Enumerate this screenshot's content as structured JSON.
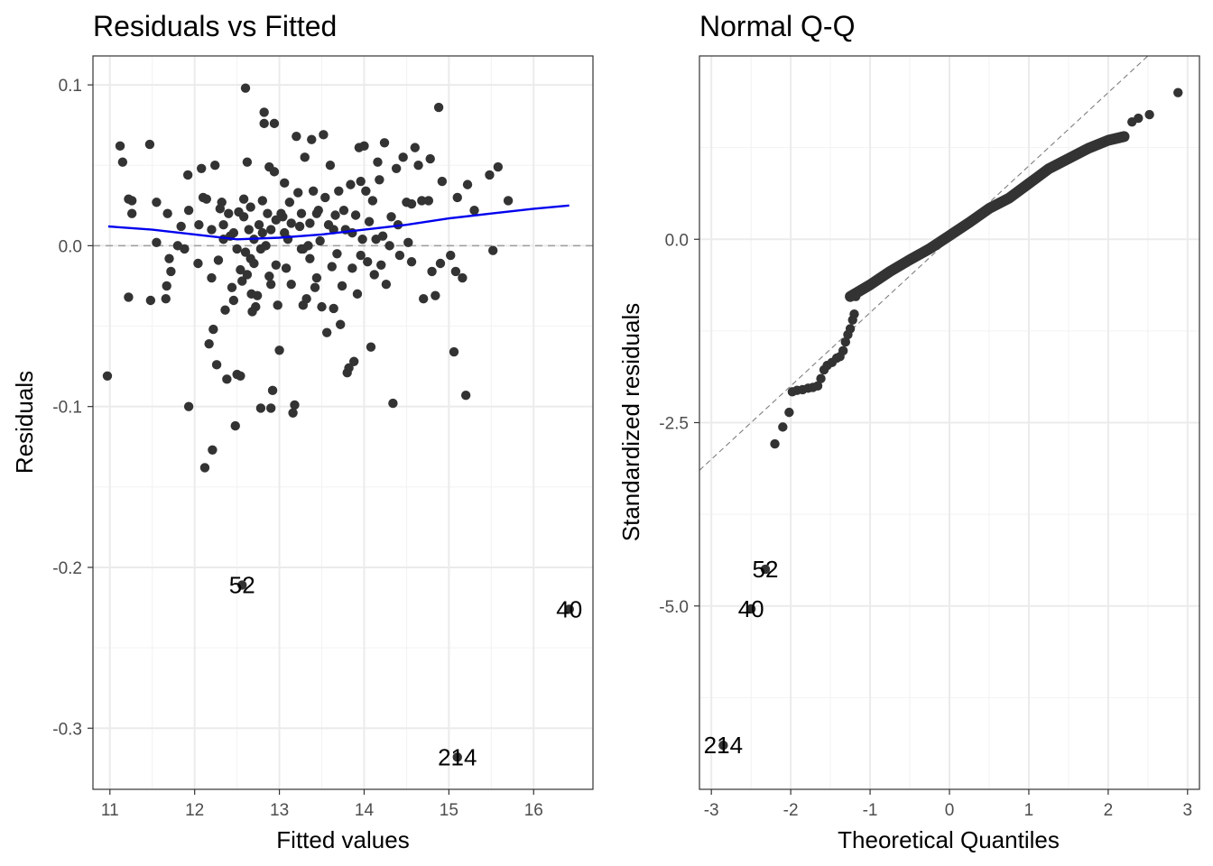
{
  "chart_data": [
    {
      "type": "scatter",
      "title": "Residuals vs Fitted",
      "xlabel": "Fitted values",
      "ylabel": "Residuals",
      "xlim": [
        10.8,
        16.7
      ],
      "ylim": [
        -0.338,
        0.118
      ],
      "xticks": [
        11,
        12,
        13,
        14,
        15,
        16
      ],
      "xtick_labels": [
        "11",
        "12",
        "13",
        "14",
        "15",
        "16"
      ],
      "yticks": [
        -0.3,
        -0.2,
        -0.1,
        0.0,
        0.1
      ],
      "ytick_labels": [
        "-0.3",
        "-0.2",
        "-0.1",
        "0.0",
        "0.1"
      ],
      "grid": true,
      "reference_line": {
        "y": 0,
        "style": "dashed",
        "color": "#9e9e9e"
      },
      "smooth_line": {
        "color": "#0000ee",
        "x": [
          10.98,
          11.5,
          12.0,
          12.5,
          13.0,
          13.5,
          14.0,
          14.5,
          15.0,
          15.5,
          16.0,
          16.42
        ],
        "y": [
          0.012,
          0.01,
          0.007,
          0.004,
          0.005,
          0.007,
          0.01,
          0.013,
          0.017,
          0.02,
          0.023,
          0.025
        ]
      },
      "point_color": "#333333",
      "series": [
        {
          "points": [
            [
              10.97,
              -0.081
            ],
            [
              11.12,
              0.062
            ],
            [
              11.15,
              0.052
            ],
            [
              11.22,
              -0.032
            ],
            [
              11.22,
              0.029
            ],
            [
              11.26,
              0.02
            ],
            [
              11.26,
              0.028
            ],
            [
              11.47,
              0.063
            ],
            [
              11.48,
              -0.034
            ],
            [
              11.55,
              0.002
            ],
            [
              11.55,
              0.027
            ],
            [
              11.66,
              -0.033
            ],
            [
              11.67,
              -0.025
            ],
            [
              11.68,
              0.02
            ],
            [
              11.7,
              -0.008
            ],
            [
              11.8,
              0.0
            ],
            [
              11.84,
              0.012
            ],
            [
              11.88,
              -0.002
            ],
            [
              11.92,
              0.044
            ],
            [
              11.93,
              -0.1
            ],
            [
              11.93,
              0.022
            ],
            [
              12.04,
              -0.011
            ],
            [
              12.05,
              0.013
            ],
            [
              12.08,
              0.048
            ],
            [
              12.1,
              0.03
            ],
            [
              12.12,
              -0.138
            ],
            [
              12.14,
              0.029
            ],
            [
              12.17,
              -0.061
            ],
            [
              12.2,
              0.01
            ],
            [
              12.2,
              -0.02
            ],
            [
              12.21,
              -0.127
            ],
            [
              12.24,
              0.05
            ],
            [
              12.26,
              -0.074
            ],
            [
              12.28,
              -0.009
            ],
            [
              12.3,
              0.023
            ],
            [
              12.32,
              0.027
            ],
            [
              12.34,
              0.004
            ],
            [
              12.34,
              0.013
            ],
            [
              12.36,
              -0.04
            ],
            [
              12.38,
              -0.083
            ],
            [
              12.4,
              0.02
            ],
            [
              12.42,
              0.006
            ],
            [
              12.44,
              -0.026
            ],
            [
              12.46,
              -0.034
            ],
            [
              12.48,
              -0.112
            ],
            [
              12.5,
              -0.08
            ],
            [
              12.5,
              -0.002
            ],
            [
              12.52,
              0.021
            ],
            [
              12.54,
              -0.015
            ],
            [
              12.54,
              -0.081
            ],
            [
              12.56,
              -0.022
            ],
            [
              12.58,
              0.018
            ],
            [
              12.58,
              0.029
            ],
            [
              12.6,
              0.098
            ],
            [
              12.6,
              -0.004
            ],
            [
              12.62,
              -0.018
            ],
            [
              12.62,
              0.052
            ],
            [
              12.64,
              0.01
            ],
            [
              12.66,
              -0.008
            ],
            [
              12.67,
              -0.03
            ],
            [
              12.68,
              -0.041
            ],
            [
              12.7,
              -0.011
            ],
            [
              12.7,
              0.004
            ],
            [
              12.72,
              -0.038
            ],
            [
              12.74,
              -0.031
            ],
            [
              12.76,
              0.013
            ],
            [
              12.78,
              -0.101
            ],
            [
              12.8,
              0.028
            ],
            [
              12.82,
              0.083
            ],
            [
              12.82,
              0.076
            ],
            [
              12.84,
              0.0
            ],
            [
              12.86,
              0.02
            ],
            [
              12.88,
              -0.019
            ],
            [
              12.88,
              0.049
            ],
            [
              12.9,
              0.01
            ],
            [
              12.9,
              -0.024
            ],
            [
              12.9,
              -0.101
            ],
            [
              12.92,
              -0.09
            ],
            [
              12.94,
              0.076
            ],
            [
              12.94,
              0.046
            ],
            [
              12.96,
              -0.012
            ],
            [
              12.98,
              -0.037
            ],
            [
              13.0,
              -0.065
            ],
            [
              13.02,
              0.02
            ],
            [
              13.04,
              0.018
            ],
            [
              13.06,
              0.039
            ],
            [
              13.08,
              -0.014
            ],
            [
              13.1,
              0.004
            ],
            [
              13.12,
              0.027
            ],
            [
              13.14,
              -0.024
            ],
            [
              13.16,
              -0.104
            ],
            [
              13.18,
              -0.099
            ],
            [
              13.2,
              0.068
            ],
            [
              13.22,
              0.033
            ],
            [
              13.24,
              0.012
            ],
            [
              13.26,
              -0.002
            ],
            [
              13.26,
              0.02
            ],
            [
              13.28,
              -0.037
            ],
            [
              13.3,
              0.055
            ],
            [
              13.32,
              -0.033
            ],
            [
              13.34,
              0.0
            ],
            [
              13.36,
              0.014
            ],
            [
              13.38,
              0.066
            ],
            [
              13.4,
              0.034
            ],
            [
              13.42,
              -0.026
            ],
            [
              13.44,
              -0.02
            ],
            [
              13.46,
              0.022
            ],
            [
              13.48,
              0.003
            ],
            [
              13.5,
              -0.038
            ],
            [
              13.52,
              0.069
            ],
            [
              13.54,
              0.03
            ],
            [
              13.56,
              -0.054
            ],
            [
              13.58,
              0.013
            ],
            [
              13.6,
              0.05
            ],
            [
              13.62,
              -0.013
            ],
            [
              13.64,
              -0.039
            ],
            [
              13.66,
              0.019
            ],
            [
              13.68,
              -0.005
            ],
            [
              13.7,
              0.034
            ],
            [
              13.72,
              -0.049
            ],
            [
              13.74,
              -0.025
            ],
            [
              13.76,
              0.022
            ],
            [
              13.78,
              0.01
            ],
            [
              13.8,
              -0.079
            ],
            [
              13.82,
              -0.076
            ],
            [
              13.84,
              0.038
            ],
            [
              13.86,
              -0.014
            ],
            [
              13.88,
              -0.072
            ],
            [
              13.9,
              0.019
            ],
            [
              13.92,
              -0.03
            ],
            [
              13.94,
              0.061
            ],
            [
              13.96,
              0.04
            ],
            [
              13.98,
              0.004
            ],
            [
              14.0,
              0.062
            ],
            [
              14.02,
              0.034
            ],
            [
              14.04,
              -0.01
            ],
            [
              14.06,
              0.015
            ],
            [
              14.08,
              -0.063
            ],
            [
              14.1,
              0.028
            ],
            [
              14.12,
              -0.018
            ],
            [
              14.14,
              0.004
            ],
            [
              14.16,
              0.052
            ],
            [
              14.18,
              0.041
            ],
            [
              14.2,
              -0.012
            ],
            [
              14.24,
              0.064
            ],
            [
              14.26,
              -0.024
            ],
            [
              14.3,
              0.0
            ],
            [
              14.34,
              -0.098
            ],
            [
              14.38,
              0.048
            ],
            [
              14.4,
              0.013
            ],
            [
              14.42,
              -0.006
            ],
            [
              14.46,
              0.055
            ],
            [
              14.5,
              0.027
            ],
            [
              14.52,
              0.002
            ],
            [
              14.56,
              0.026
            ],
            [
              14.6,
              0.061
            ],
            [
              14.64,
              0.05
            ],
            [
              14.68,
              0.028
            ],
            [
              14.7,
              -0.033
            ],
            [
              14.76,
              0.028
            ],
            [
              14.78,
              0.054
            ],
            [
              14.84,
              -0.031
            ],
            [
              14.88,
              0.086
            ],
            [
              14.9,
              -0.011
            ],
            [
              14.92,
              0.04
            ],
            [
              15.02,
              -0.006
            ],
            [
              15.06,
              -0.066
            ],
            [
              15.1,
              0.03
            ],
            [
              15.16,
              -0.02
            ],
            [
              15.2,
              -0.093
            ],
            [
              15.22,
              0.038
            ],
            [
              15.3,
              0.022
            ],
            [
              15.48,
              0.044
            ],
            [
              15.52,
              -0.003
            ],
            [
              15.58,
              0.049
            ],
            [
              15.7,
              0.028
            ],
            [
              11.72,
              -0.016
            ],
            [
              12.22,
              -0.052
            ],
            [
              13.28,
              -0.002
            ],
            [
              13.86,
              0.008
            ],
            [
              14.8,
              -0.016
            ],
            [
              15.08,
              -0.016
            ],
            [
              12.66,
              0.024
            ],
            [
              13.44,
              0.02
            ],
            [
              12.78,
              -0.002
            ],
            [
              14.32,
              0.018
            ],
            [
              13.06,
              0.008
            ],
            [
              12.46,
              0.008
            ],
            [
              13.96,
              -0.006
            ],
            [
              14.56,
              -0.01
            ],
            [
              12.96,
              0.016
            ],
            [
              13.64,
              0.01
            ],
            [
              12.8,
              0.008
            ],
            [
              13.36,
              -0.008
            ],
            [
              14.22,
              0.006
            ],
            [
              13.14,
              0.014
            ]
          ]
        }
      ],
      "labeled_points": [
        {
          "label": "52",
          "x": 12.56,
          "y": -0.211
        },
        {
          "label": "40",
          "x": 16.42,
          "y": -0.226
        },
        {
          "label": "214",
          "x": 15.1,
          "y": -0.318
        }
      ]
    },
    {
      "type": "scatter",
      "title": "Normal Q-Q",
      "xlabel": "Theoretical Quantiles",
      "ylabel": "Standardized residuals",
      "xlim": [
        -3.15,
        3.15
      ],
      "ylim": [
        -7.5,
        2.5
      ],
      "xticks": [
        -3,
        -2,
        -1,
        0,
        1,
        2,
        3
      ],
      "xtick_labels": [
        "-3",
        "-2",
        "-1",
        "0",
        "1",
        "2",
        "3"
      ],
      "yticks": [
        -5.0,
        -2.5,
        0.0
      ],
      "ytick_labels": [
        "-5.0",
        "-2.5",
        "0.0"
      ],
      "grid": true,
      "reference_line": {
        "slope": 1,
        "intercept": 0,
        "style": "dashed",
        "color": "#7f7f7f"
      },
      "point_color": "#333333",
      "qq_curve": {
        "x": [
          -1.25,
          -1.0,
          -0.75,
          -0.5,
          -0.25,
          0.0,
          0.25,
          0.5,
          0.75,
          1.0,
          1.25,
          1.5,
          1.75,
          2.0,
          2.2
        ],
        "y": [
          -0.78,
          -0.62,
          -0.44,
          -0.28,
          -0.13,
          0.05,
          0.23,
          0.42,
          0.56,
          0.76,
          0.96,
          1.1,
          1.24,
          1.35,
          1.4
        ]
      },
      "series": [
        {
          "points": [
            [
              -2.2,
              -2.79
            ],
            [
              -2.1,
              -2.56
            ],
            [
              -2.02,
              -2.36
            ],
            [
              -1.98,
              -2.08
            ],
            [
              -1.92,
              -2.06
            ],
            [
              -1.85,
              -2.05
            ],
            [
              -1.78,
              -2.03
            ],
            [
              -1.72,
              -2.02
            ],
            [
              -1.66,
              -2.0
            ],
            [
              -1.62,
              -1.9
            ],
            [
              -1.58,
              -1.78
            ],
            [
              -1.54,
              -1.72
            ],
            [
              -1.48,
              -1.68
            ],
            [
              -1.42,
              -1.62
            ],
            [
              -1.38,
              -1.6
            ],
            [
              -1.34,
              -1.52
            ],
            [
              -1.31,
              -1.4
            ],
            [
              -1.28,
              -1.3
            ],
            [
              -1.25,
              -1.22
            ],
            [
              -1.22,
              -1.1
            ],
            [
              -1.2,
              -1.02
            ],
            [
              -1.18,
              -0.78
            ],
            [
              2.2,
              1.4
            ],
            [
              2.3,
              1.6
            ],
            [
              2.38,
              1.65
            ],
            [
              2.52,
              1.7
            ],
            [
              2.88,
              2.0
            ]
          ]
        }
      ],
      "labeled_points": [
        {
          "label": "52",
          "x": -2.32,
          "y": -4.5
        },
        {
          "label": "40",
          "x": -2.5,
          "y": -5.04
        },
        {
          "label": "214",
          "x": -2.85,
          "y": -6.9
        }
      ]
    }
  ]
}
